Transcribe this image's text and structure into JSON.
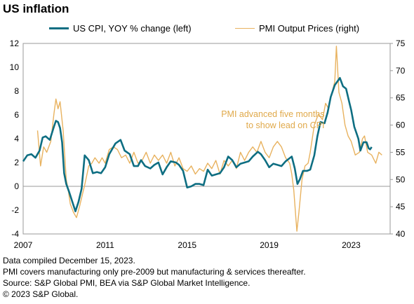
{
  "title": "US inflation",
  "colors": {
    "cpi": "#0e6e82",
    "pmi": "#e8b25f",
    "annotation": "#e0a94a",
    "axis": "#9a9a9a"
  },
  "chart_data": {
    "type": "line",
    "legend_position": "top",
    "grid": false,
    "x_range": [
      2007,
      2024.9
    ],
    "x_ticks": [
      "2007",
      "2011",
      "2015",
      "2019",
      "2023"
    ],
    "y_left": {
      "range": [
        -4,
        12
      ],
      "ticks": [
        -4,
        -2,
        0,
        2,
        4,
        6,
        8,
        10,
        12
      ]
    },
    "y_right": {
      "range": [
        40,
        75
      ],
      "ticks": [
        40,
        45,
        50,
        55,
        60,
        65,
        70,
        75
      ]
    },
    "annotation": {
      "lines": [
        "PMI advanced  five months",
        "to show lead on CPI"
      ],
      "x": 2021.7,
      "y_right": 61.5
    },
    "series": [
      {
        "name": "US CPI, YOY % change (left)",
        "axis": "left",
        "points": [
          [
            2007.0,
            2.1
          ],
          [
            2007.2,
            2.6
          ],
          [
            2007.4,
            2.7
          ],
          [
            2007.6,
            2.4
          ],
          [
            2007.8,
            3.0
          ],
          [
            2007.95,
            4.1
          ],
          [
            2008.1,
            4.2
          ],
          [
            2008.3,
            3.9
          ],
          [
            2008.5,
            5.0
          ],
          [
            2008.6,
            5.5
          ],
          [
            2008.7,
            5.4
          ],
          [
            2008.8,
            4.9
          ],
          [
            2008.9,
            3.7
          ],
          [
            2009.0,
            1.1
          ],
          [
            2009.1,
            0.2
          ],
          [
            2009.25,
            -0.5
          ],
          [
            2009.4,
            -1.3
          ],
          [
            2009.55,
            -2.1
          ],
          [
            2009.7,
            -1.3
          ],
          [
            2009.85,
            -0.2
          ],
          [
            2010.0,
            2.6
          ],
          [
            2010.2,
            2.2
          ],
          [
            2010.4,
            1.1
          ],
          [
            2010.6,
            1.2
          ],
          [
            2010.8,
            1.1
          ],
          [
            2011.0,
            1.6
          ],
          [
            2011.2,
            2.7
          ],
          [
            2011.5,
            3.6
          ],
          [
            2011.75,
            3.9
          ],
          [
            2011.95,
            3.0
          ],
          [
            2012.2,
            2.7
          ],
          [
            2012.4,
            1.7
          ],
          [
            2012.6,
            1.7
          ],
          [
            2012.75,
            2.2
          ],
          [
            2012.95,
            1.7
          ],
          [
            2013.2,
            1.5
          ],
          [
            2013.4,
            1.8
          ],
          [
            2013.6,
            2.0
          ],
          [
            2013.8,
            1.0
          ],
          [
            2014.0,
            1.6
          ],
          [
            2014.2,
            2.1
          ],
          [
            2014.45,
            2.0
          ],
          [
            2014.6,
            1.8
          ],
          [
            2014.8,
            1.3
          ],
          [
            2015.0,
            -0.1
          ],
          [
            2015.2,
            0.0
          ],
          [
            2015.4,
            0.2
          ],
          [
            2015.6,
            0.2
          ],
          [
            2015.8,
            0.1
          ],
          [
            2016.0,
            1.4
          ],
          [
            2016.2,
            0.9
          ],
          [
            2016.4,
            1.0
          ],
          [
            2016.6,
            1.1
          ],
          [
            2016.8,
            1.6
          ],
          [
            2017.0,
            2.5
          ],
          [
            2017.2,
            2.2
          ],
          [
            2017.4,
            1.6
          ],
          [
            2017.6,
            1.9
          ],
          [
            2017.8,
            2.0
          ],
          [
            2018.0,
            2.1
          ],
          [
            2018.2,
            2.5
          ],
          [
            2018.45,
            2.9
          ],
          [
            2018.6,
            2.7
          ],
          [
            2018.8,
            2.2
          ],
          [
            2019.0,
            1.6
          ],
          [
            2019.2,
            1.9
          ],
          [
            2019.4,
            1.8
          ],
          [
            2019.6,
            1.7
          ],
          [
            2019.8,
            2.1
          ],
          [
            2019.95,
            2.3
          ],
          [
            2020.1,
            2.5
          ],
          [
            2020.25,
            1.5
          ],
          [
            2020.38,
            0.2
          ],
          [
            2020.5,
            0.6
          ],
          [
            2020.65,
            1.3
          ],
          [
            2020.85,
            1.3
          ],
          [
            2021.0,
            1.4
          ],
          [
            2021.2,
            2.6
          ],
          [
            2021.35,
            4.2
          ],
          [
            2021.5,
            5.4
          ],
          [
            2021.7,
            5.3
          ],
          [
            2021.85,
            6.2
          ],
          [
            2022.0,
            7.5
          ],
          [
            2022.2,
            8.5
          ],
          [
            2022.45,
            9.1
          ],
          [
            2022.6,
            8.4
          ],
          [
            2022.75,
            8.2
          ],
          [
            2022.9,
            7.1
          ],
          [
            2023.0,
            6.4
          ],
          [
            2023.15,
            5.0
          ],
          [
            2023.35,
            4.0
          ],
          [
            2023.45,
            3.0
          ],
          [
            2023.6,
            3.7
          ],
          [
            2023.75,
            3.7
          ],
          [
            2023.85,
            3.2
          ],
          [
            2023.92,
            3.1
          ],
          [
            2024.0,
            3.3
          ]
        ]
      },
      {
        "name": "PMI Output Prices (right)",
        "axis": "right",
        "points": [
          [
            2007.7,
            59
          ],
          [
            2007.85,
            52.5
          ],
          [
            2008.0,
            56
          ],
          [
            2008.15,
            55
          ],
          [
            2008.35,
            57
          ],
          [
            2008.5,
            62
          ],
          [
            2008.6,
            64.8
          ],
          [
            2008.7,
            63
          ],
          [
            2008.8,
            64.3
          ],
          [
            2008.95,
            59
          ],
          [
            2009.1,
            50
          ],
          [
            2009.2,
            48
          ],
          [
            2009.3,
            45.5
          ],
          [
            2009.45,
            44
          ],
          [
            2009.6,
            43
          ],
          [
            2009.75,
            45
          ],
          [
            2010.0,
            49
          ],
          [
            2010.2,
            52.5
          ],
          [
            2010.35,
            53
          ],
          [
            2010.5,
            54
          ],
          [
            2010.7,
            53
          ],
          [
            2010.85,
            54
          ],
          [
            2011.0,
            53
          ],
          [
            2011.2,
            55.5
          ],
          [
            2011.4,
            56
          ],
          [
            2011.6,
            55.5
          ],
          [
            2011.8,
            54
          ],
          [
            2012.0,
            54.5
          ],
          [
            2012.2,
            53
          ],
          [
            2012.4,
            55
          ],
          [
            2012.6,
            53
          ],
          [
            2012.8,
            53.5
          ],
          [
            2013.0,
            55
          ],
          [
            2013.2,
            53
          ],
          [
            2013.4,
            54.5
          ],
          [
            2013.6,
            53.5
          ],
          [
            2013.8,
            54.5
          ],
          [
            2014.0,
            53
          ],
          [
            2014.2,
            55
          ],
          [
            2014.4,
            52.5
          ],
          [
            2014.6,
            54
          ],
          [
            2014.8,
            52
          ],
          [
            2015.0,
            51.5
          ],
          [
            2015.2,
            52.5
          ],
          [
            2015.4,
            51
          ],
          [
            2015.6,
            52
          ],
          [
            2015.8,
            51.5
          ],
          [
            2016.0,
            53
          ],
          [
            2016.2,
            52
          ],
          [
            2016.4,
            53.5
          ],
          [
            2016.6,
            51
          ],
          [
            2016.8,
            53.5
          ],
          [
            2017.0,
            52.5
          ],
          [
            2017.2,
            53.5
          ],
          [
            2017.4,
            52
          ],
          [
            2017.6,
            55
          ],
          [
            2017.8,
            53.5
          ],
          [
            2018.0,
            55
          ],
          [
            2018.2,
            56
          ],
          [
            2018.4,
            55
          ],
          [
            2018.6,
            57
          ],
          [
            2018.8,
            55
          ],
          [
            2019.0,
            54
          ],
          [
            2019.2,
            56
          ],
          [
            2019.4,
            57
          ],
          [
            2019.6,
            56
          ],
          [
            2019.8,
            54
          ],
          [
            2020.0,
            53
          ],
          [
            2020.1,
            51
          ],
          [
            2020.2,
            48
          ],
          [
            2020.3,
            43
          ],
          [
            2020.35,
            40.5
          ],
          [
            2020.45,
            44
          ],
          [
            2020.6,
            50
          ],
          [
            2020.75,
            52.5
          ],
          [
            2020.9,
            53
          ],
          [
            2021.0,
            55
          ],
          [
            2021.2,
            60
          ],
          [
            2021.4,
            62
          ],
          [
            2021.6,
            61
          ],
          [
            2021.75,
            64
          ],
          [
            2021.9,
            63
          ],
          [
            2022.0,
            65
          ],
          [
            2022.2,
            68
          ],
          [
            2022.28,
            74.5
          ],
          [
            2022.4,
            66
          ],
          [
            2022.55,
            64
          ],
          [
            2022.7,
            60
          ],
          [
            2022.85,
            58
          ],
          [
            2023.0,
            57
          ],
          [
            2023.2,
            54.5
          ],
          [
            2023.4,
            55
          ],
          [
            2023.55,
            57.5
          ],
          [
            2023.65,
            58
          ],
          [
            2023.8,
            55
          ],
          [
            2024.0,
            54.5
          ],
          [
            2024.2,
            53
          ],
          [
            2024.35,
            55
          ],
          [
            2024.5,
            54.5
          ]
        ]
      }
    ]
  },
  "notes": [
    "Data compiled December 15, 2023.",
    "PMI covers manufacturing only pre-2009 but manufacturing & services thereafter.",
    "Source: S&P Global PMI, BEA via S&P Global Market Intelligence.",
    "© 2023 S&P Global."
  ]
}
